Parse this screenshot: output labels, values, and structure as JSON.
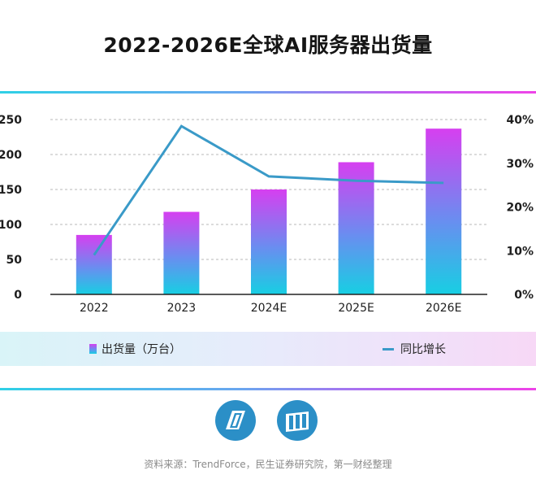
{
  "title": "2022-2026E全球AI服务器出货量",
  "source": "资料来源：TrendForce，民生证券研究院，第一财经整理",
  "colors": {
    "bar_top": "#d63ff0",
    "bar_mid": "#6a8df0",
    "bar_bottom": "#17cfe3",
    "line": "#3a9ac8",
    "logo": "#2b8fc7"
  },
  "logos": [
    "trendforce-logo-icon",
    "securities-logo-icon"
  ],
  "chart_data": {
    "type": "bar",
    "title": "2022-2026E全球AI服务器出货量",
    "categories": [
      "2022",
      "2023",
      "2024E",
      "2025E",
      "2026E"
    ],
    "series": [
      {
        "name": "出货量（万台）",
        "type": "bar",
        "axis": "left",
        "values": [
          85,
          118,
          150,
          189,
          237
        ]
      },
      {
        "name": "同比增长",
        "type": "line",
        "axis": "right",
        "values": [
          0.09,
          0.385,
          0.27,
          0.26,
          0.255
        ]
      }
    ],
    "y_left": {
      "ylim": [
        0,
        250
      ],
      "ticks": [
        "0",
        "50",
        "100",
        "150",
        "200",
        "250"
      ]
    },
    "y_right": {
      "ylim": [
        0,
        0.4
      ],
      "ticks": [
        "0%",
        "10%",
        "20%",
        "30%",
        "40%"
      ]
    },
    "grid": true,
    "legend": "bottom"
  }
}
